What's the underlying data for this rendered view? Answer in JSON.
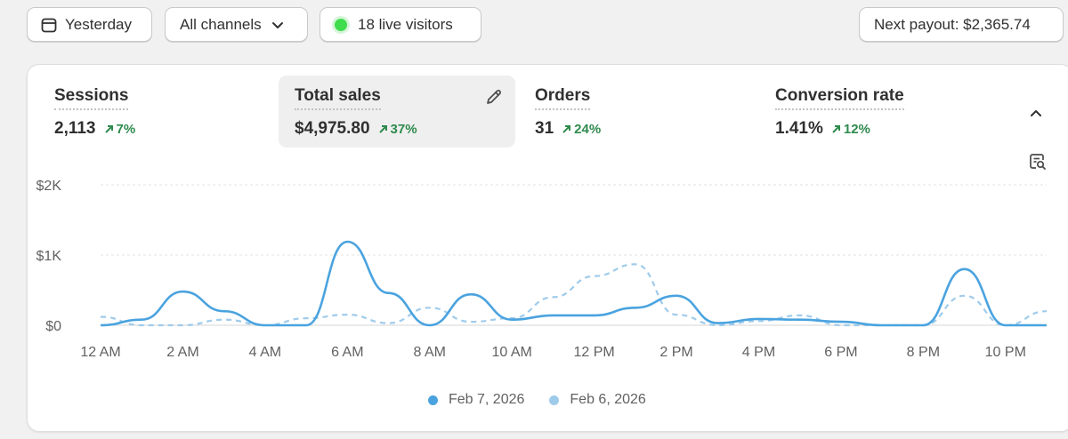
{
  "toolbar": {
    "date_label": "Yesterday",
    "channels_label": "All channels",
    "live_visitors_label": "18 live visitors",
    "payout_label": "Next payout: $2,365.74"
  },
  "metrics": [
    {
      "label": "Sessions",
      "value": "2,113",
      "change": "7%"
    },
    {
      "label": "Total sales",
      "value": "$4,975.80",
      "change": "37%"
    },
    {
      "label": "Orders",
      "value": "31",
      "change": "24%"
    },
    {
      "label": "Conversion rate",
      "value": "1.41%",
      "change": "12%"
    }
  ],
  "colors": {
    "primary_series": "#4aa3df",
    "comparison_series": "#9fcbeb",
    "positive_change": "#2e8a4d",
    "live_dot": "#3fdc4e"
  },
  "chart_data": {
    "type": "line",
    "title": "Total sales",
    "x": [
      "12 AM",
      "1 AM",
      "2 AM",
      "3 AM",
      "4 AM",
      "5 AM",
      "6 AM",
      "7 AM",
      "8 AM",
      "9 AM",
      "10 AM",
      "11 AM",
      "12 PM",
      "1 PM",
      "2 PM",
      "3 PM",
      "4 PM",
      "5 PM",
      "6 PM",
      "7 PM",
      "8 PM",
      "9 PM",
      "10 PM",
      "11 PM"
    ],
    "xticks": [
      "12 AM",
      "2 AM",
      "4 AM",
      "6 AM",
      "8 AM",
      "10 AM",
      "12 PM",
      "2 PM",
      "4 PM",
      "6 PM",
      "8 PM",
      "10 PM"
    ],
    "yticks": [
      "$0",
      "$1K",
      "$2K"
    ],
    "ylim": [
      0,
      2000
    ],
    "series": [
      {
        "name": "Feb 7, 2026",
        "style": "solid",
        "values": [
          0,
          80,
          480,
          200,
          0,
          0,
          1190,
          460,
          0,
          440,
          80,
          140,
          140,
          250,
          420,
          30,
          90,
          80,
          50,
          0,
          0,
          800,
          0,
          0
        ]
      },
      {
        "name": "Feb 6, 2026",
        "style": "dashed",
        "values": [
          120,
          0,
          0,
          80,
          0,
          100,
          150,
          30,
          250,
          50,
          100,
          400,
          700,
          870,
          150,
          0,
          60,
          140,
          0,
          0,
          0,
          420,
          0,
          200
        ]
      }
    ],
    "legend": [
      "Feb 7, 2026",
      "Feb 6, 2026"
    ]
  }
}
